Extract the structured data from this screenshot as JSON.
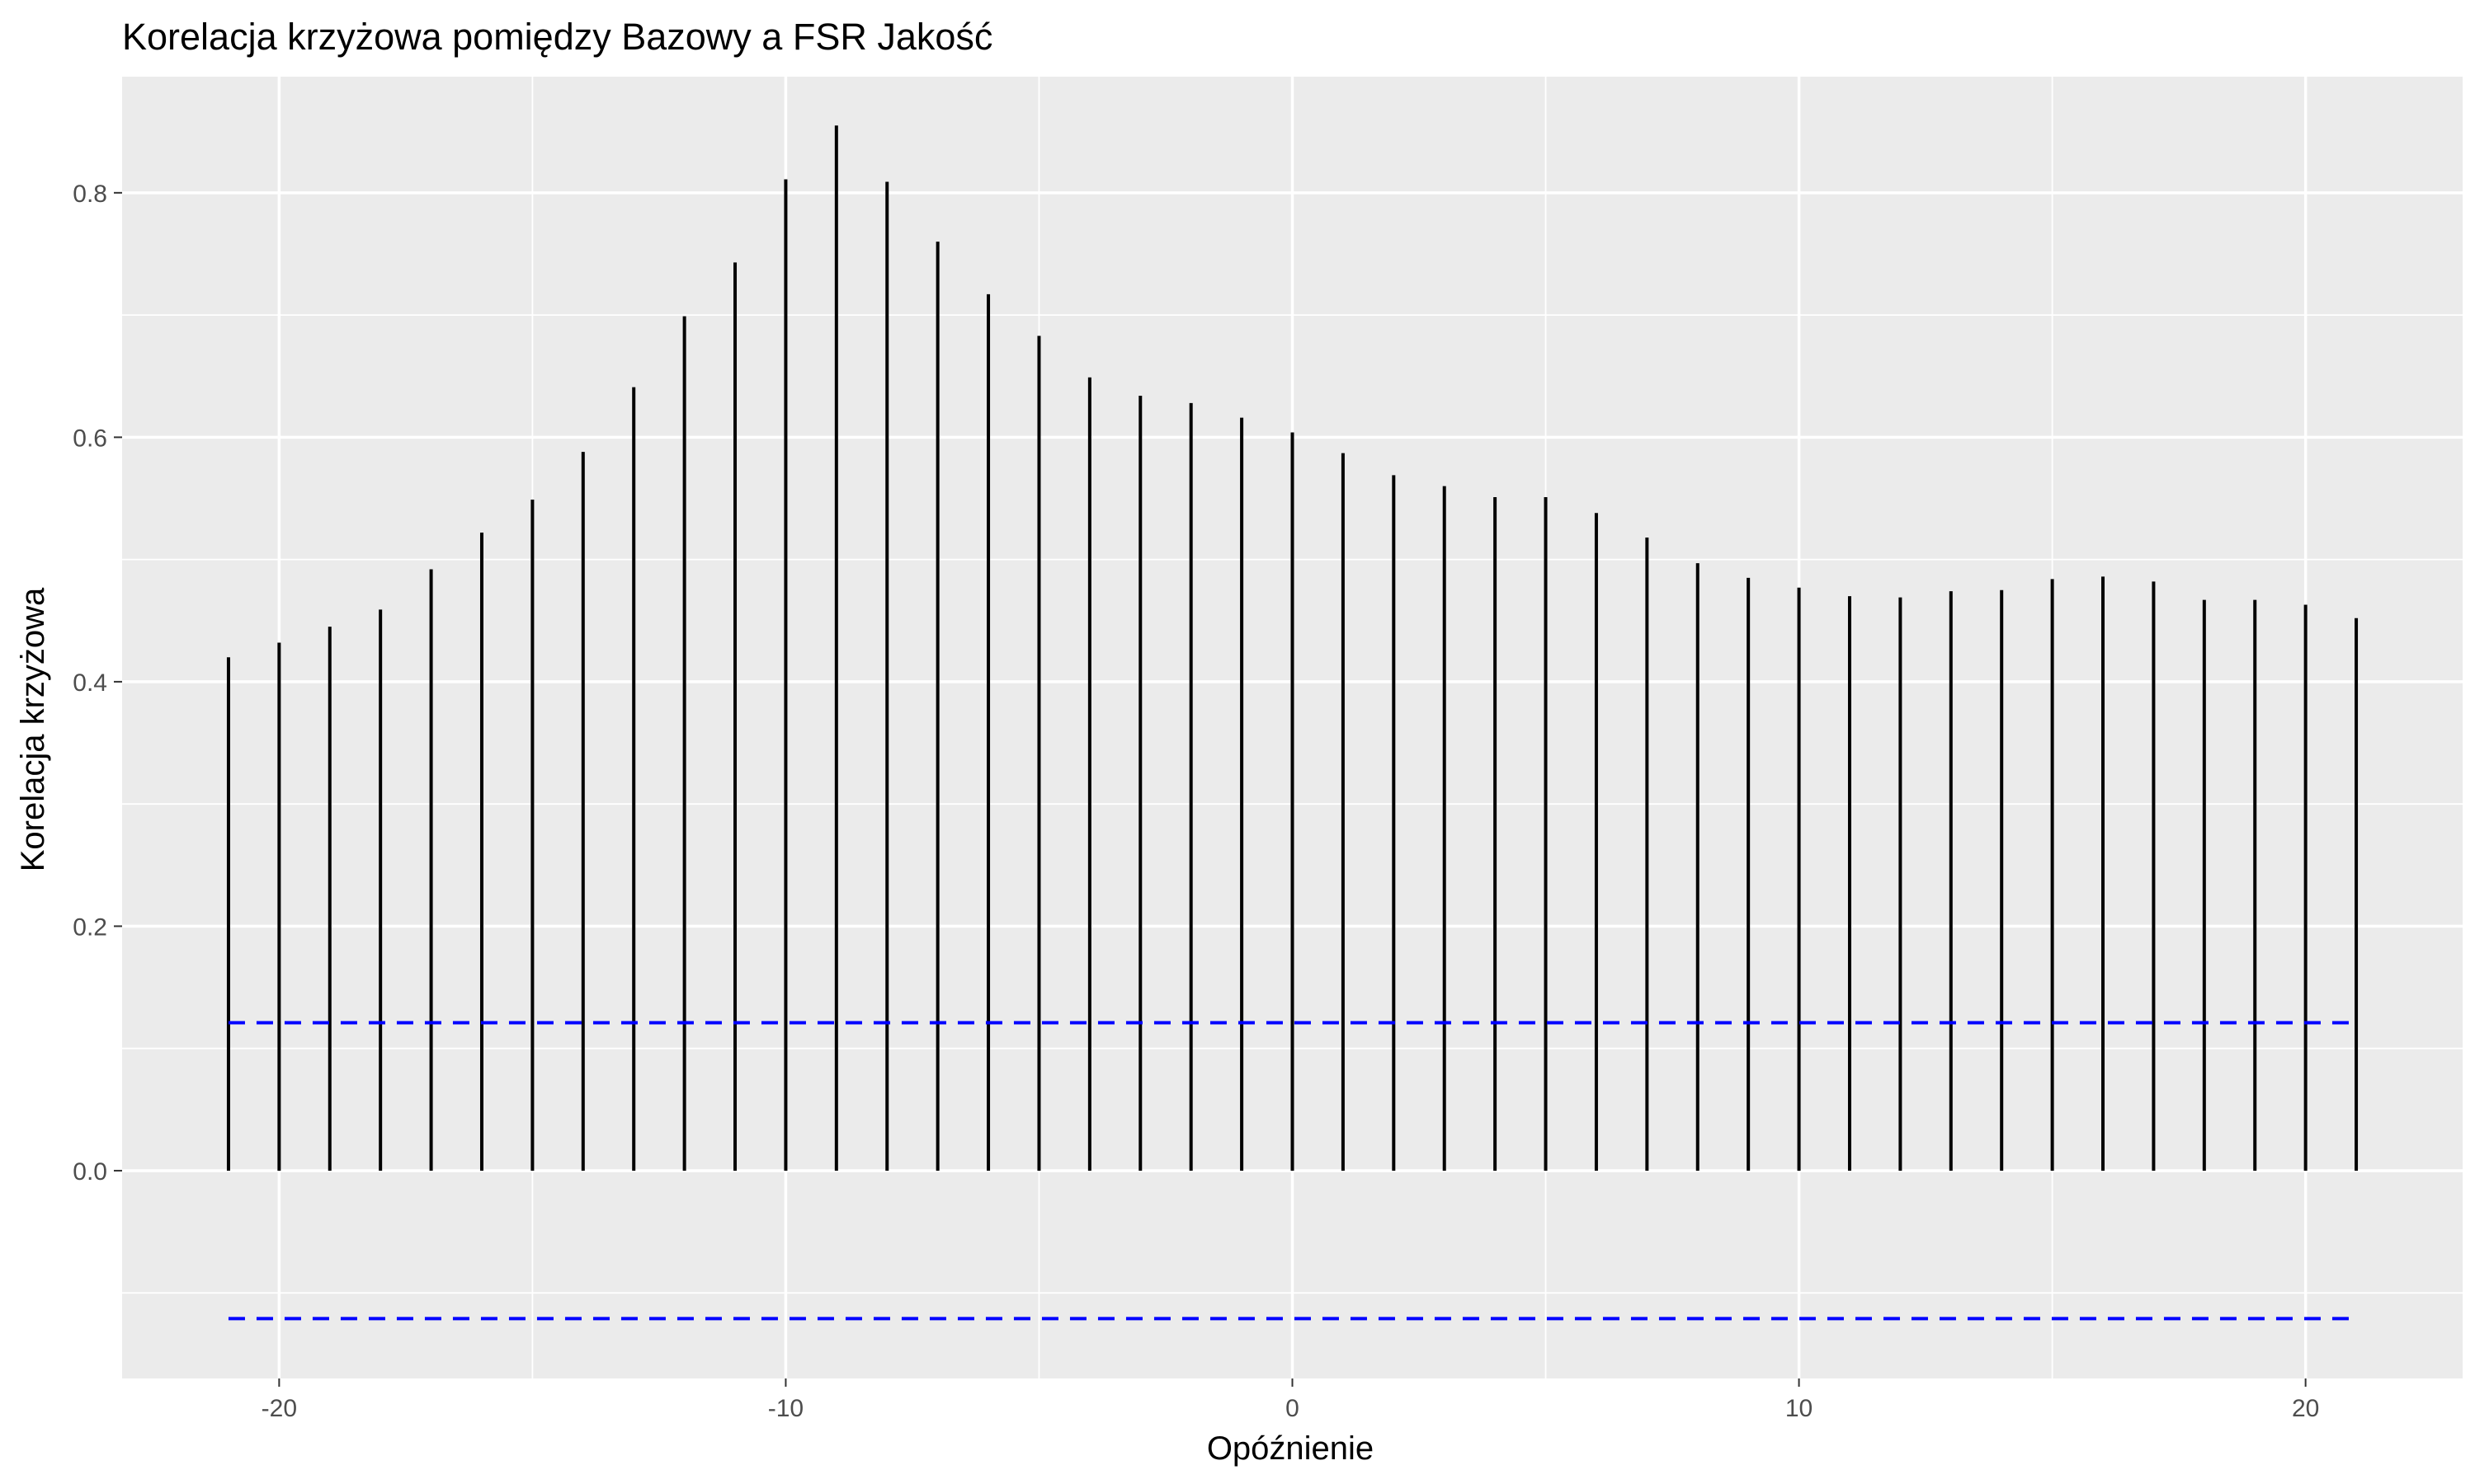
{
  "chart_data": {
    "type": "bar",
    "title": "Korelacja krzyżowa pomiędzy Bazowy a FSR Jakość",
    "xlabel": "Opóźnienie",
    "ylabel": "Korelacja krzyżowa",
    "xlim": [
      -23.1,
      23.1
    ],
    "ylim": [
      -0.17,
      0.895
    ],
    "x_ticks": [
      -20,
      -10,
      0,
      10,
      20
    ],
    "x_tick_labels": [
      "-20",
      "-10",
      "0",
      "10",
      "20"
    ],
    "y_ticks": [
      0.0,
      0.2,
      0.4,
      0.6,
      0.8
    ],
    "y_tick_labels": [
      "0.0",
      "0.2",
      "0.4",
      "0.6",
      "0.8"
    ],
    "grid": true,
    "lags": [
      -21,
      -20,
      -19,
      -18,
      -17,
      -16,
      -15,
      -14,
      -13,
      -12,
      -11,
      -10,
      -9,
      -8,
      -7,
      -6,
      -5,
      -4,
      -3,
      -2,
      -1,
      0,
      1,
      2,
      3,
      4,
      5,
      6,
      7,
      8,
      9,
      10,
      11,
      12,
      13,
      14,
      15,
      16,
      17,
      18,
      19,
      20,
      21
    ],
    "values": [
      0.42,
      0.432,
      0.445,
      0.459,
      0.492,
      0.522,
      0.549,
      0.588,
      0.641,
      0.699,
      0.743,
      0.811,
      0.855,
      0.809,
      0.76,
      0.717,
      0.683,
      0.649,
      0.634,
      0.628,
      0.616,
      0.604,
      0.587,
      0.569,
      0.56,
      0.551,
      0.551,
      0.538,
      0.518,
      0.497,
      0.485,
      0.477,
      0.47,
      0.469,
      0.474,
      0.475,
      0.484,
      0.486,
      0.482,
      0.467,
      0.467,
      0.463,
      0.452
    ],
    "confidence_bounds": [
      0.121,
      -0.121
    ],
    "colors": {
      "bars": "#000000",
      "confidence": "#0000ff",
      "panel": "#ebebeb",
      "grid": "#ffffff"
    }
  }
}
